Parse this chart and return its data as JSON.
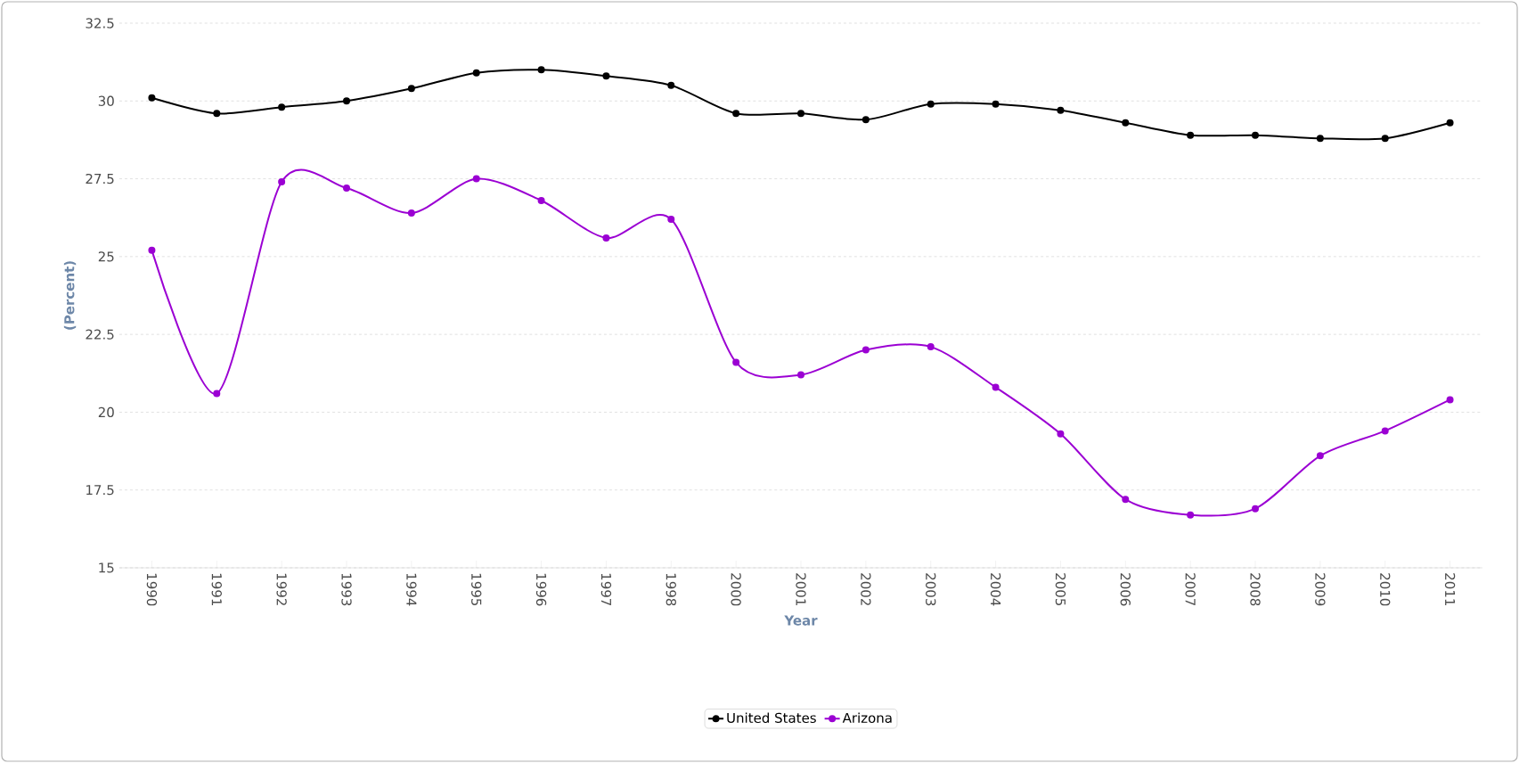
{
  "chart_data": {
    "type": "line",
    "xlabel": "Year",
    "ylabel": "(Percent)",
    "categories": [
      "1990",
      "1991",
      "1992",
      "1993",
      "1994",
      "1995",
      "1996",
      "1997",
      "1998",
      "2000",
      "2001",
      "2002",
      "2003",
      "2004",
      "2005",
      "2006",
      "2007",
      "2008",
      "2009",
      "2010",
      "2011"
    ],
    "series": [
      {
        "name": "United States",
        "color": "#000000",
        "values": [
          30.1,
          29.6,
          29.8,
          30.0,
          30.4,
          30.9,
          31.0,
          30.8,
          30.5,
          29.6,
          29.6,
          29.4,
          29.9,
          29.9,
          29.7,
          29.3,
          28.9,
          28.9,
          28.8,
          28.8,
          29.3
        ]
      },
      {
        "name": "Arizona",
        "color": "#9b00d3",
        "values": [
          25.2,
          20.6,
          27.4,
          27.2,
          26.4,
          27.5,
          26.8,
          25.6,
          26.2,
          21.6,
          21.2,
          22.0,
          22.1,
          20.8,
          19.3,
          17.2,
          16.7,
          16.9,
          18.6,
          19.4,
          20.4
        ]
      }
    ],
    "ylim": [
      15,
      32.5
    ],
    "yticks": [
      15,
      17.5,
      20,
      22.5,
      25,
      27.5,
      30,
      32.5
    ],
    "grid": "y",
    "legend": "bottom",
    "marker": "circle"
  }
}
